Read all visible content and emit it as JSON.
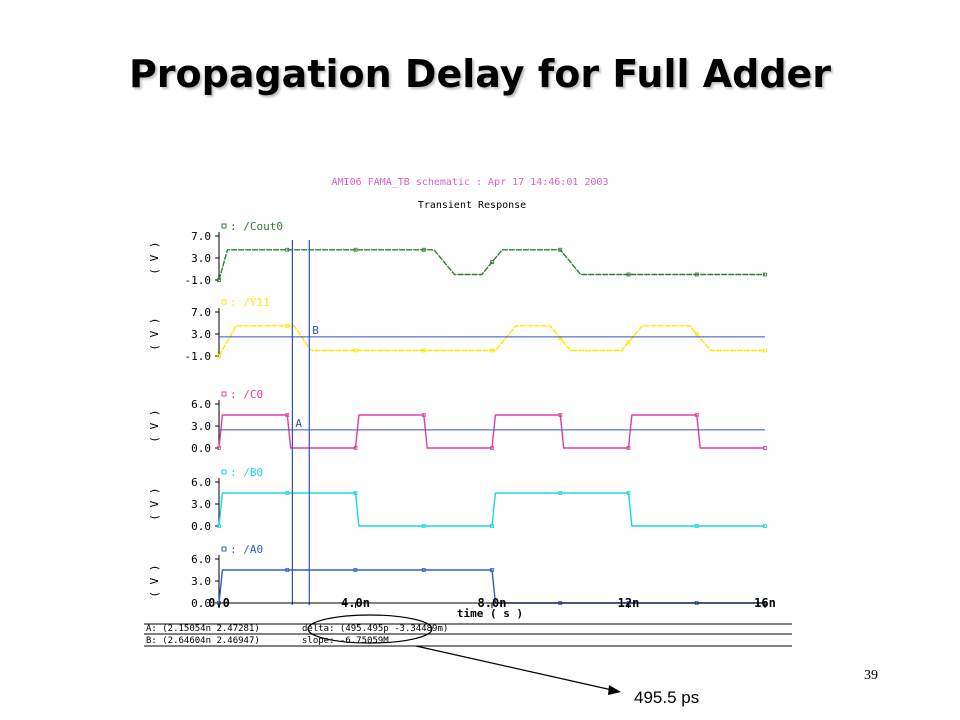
{
  "slide": {
    "title": "Propagation Delay for Full Adder",
    "page_number": "39",
    "callout": "495.5 ps"
  },
  "chart_data": {
    "type": "line",
    "title": "AMI06 FAMA_TB schematic : Apr 17 14:46:01 2003",
    "subtitle": "Transient Response",
    "xlabel": "time ( s )",
    "x_ticks": [
      "0.0",
      "4.0n",
      "8.0n",
      "12n",
      "16n"
    ],
    "xlim": [
      0,
      16
    ],
    "x_unit_note": "ns",
    "colors": {
      "Cout0": "#2e7d32",
      "Y11": "#ffe600",
      "C0": "#e040a0",
      "B0": "#18d8e0",
      "A0": "#2d5fd0",
      "cursor": "#3050c0",
      "title": "#e060c0"
    },
    "panels": [
      {
        "name": "/Cout0",
        "ylabel": "( V )",
        "yticks": [
          "7.0",
          "3.0",
          "-1.0"
        ],
        "ylim": [
          -1,
          7
        ],
        "color": "Cout0",
        "points": [
          [
            0,
            -1
          ],
          [
            0.25,
            4.5
          ],
          [
            6.3,
            4.5
          ],
          [
            6.9,
            0
          ],
          [
            7.7,
            0
          ],
          [
            8.3,
            4.5
          ],
          [
            10.0,
            4.5
          ],
          [
            10.6,
            0
          ],
          [
            16,
            0
          ]
        ]
      },
      {
        "name": "/Y11",
        "ylabel": "( V )",
        "yticks": [
          "7.0",
          "3.0",
          "-1.0"
        ],
        "ylim": [
          -1,
          7
        ],
        "color": "Y11",
        "points": [
          [
            0,
            -1
          ],
          [
            0.5,
            4.5
          ],
          [
            2.2,
            4.5
          ],
          [
            2.7,
            0
          ],
          [
            8.1,
            0
          ],
          [
            8.7,
            4.5
          ],
          [
            9.7,
            4.5
          ],
          [
            10.3,
            0
          ],
          [
            11.8,
            0
          ],
          [
            12.4,
            4.5
          ],
          [
            13.8,
            4.5
          ],
          [
            14.4,
            0
          ],
          [
            16,
            0
          ]
        ]
      },
      {
        "name": "/C0",
        "ylabel": "( V )",
        "yticks": [
          "6.0",
          "3.0",
          "0.0"
        ],
        "ylim": [
          0,
          6
        ],
        "color": "C0",
        "points": [
          [
            0,
            0
          ],
          [
            0.1,
            4.5
          ],
          [
            2.0,
            4.5
          ],
          [
            2.1,
            0
          ],
          [
            4.0,
            0
          ],
          [
            4.1,
            4.5
          ],
          [
            6.0,
            4.5
          ],
          [
            6.1,
            0
          ],
          [
            8.0,
            0
          ],
          [
            8.1,
            4.5
          ],
          [
            10.0,
            4.5
          ],
          [
            10.1,
            0
          ],
          [
            12.0,
            0
          ],
          [
            12.1,
            4.5
          ],
          [
            14.0,
            4.5
          ],
          [
            14.1,
            0
          ],
          [
            16,
            0
          ]
        ]
      },
      {
        "name": "/B0",
        "ylabel": "( V )",
        "yticks": [
          "6.0",
          "3.0",
          "0.0"
        ],
        "ylim": [
          0,
          6
        ],
        "color": "B0",
        "points": [
          [
            0,
            0
          ],
          [
            0.1,
            4.5
          ],
          [
            4.0,
            4.5
          ],
          [
            4.1,
            0
          ],
          [
            8.0,
            0
          ],
          [
            8.1,
            4.5
          ],
          [
            12.0,
            4.5
          ],
          [
            12.1,
            0
          ],
          [
            16,
            0
          ]
        ]
      },
      {
        "name": "/A0",
        "ylabel": "( V )",
        "yticks": [
          "6.0",
          "3.0",
          "0.0"
        ],
        "ylim": [
          0,
          6
        ],
        "color": "A0",
        "points": [
          [
            0,
            0
          ],
          [
            0.1,
            4.5
          ],
          [
            8.0,
            4.5
          ],
          [
            8.1,
            0
          ],
          [
            16,
            0
          ]
        ]
      }
    ],
    "cursors": [
      {
        "label": "A",
        "x": 2.15054,
        "panel": 2,
        "level": 2.47281
      },
      {
        "label": "B",
        "x": 2.64604,
        "panel": 1,
        "level": 2.46947
      }
    ],
    "readout": {
      "lineA": "A: (2.15054n 2.47281)",
      "lineB": "B: (2.64604n 2.46947)",
      "delta": "delta: (495.495p -3.34489m)",
      "slope": "slope: -6.75059M"
    }
  }
}
